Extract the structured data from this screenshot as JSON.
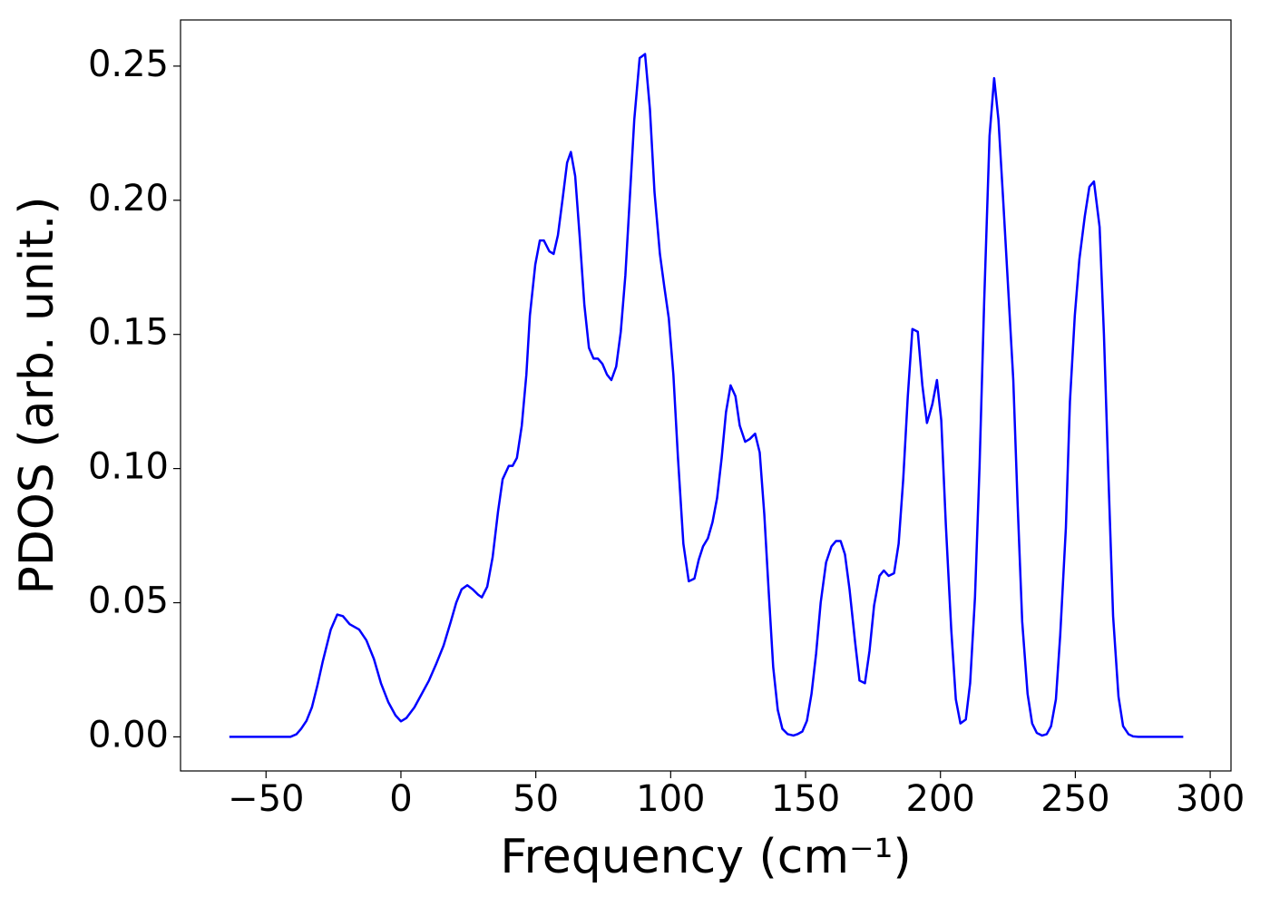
{
  "chart_data": {
    "type": "line",
    "xlabel": "Frequency (cm⁻¹)",
    "ylabel": "PDOS (arb. unit.)",
    "xlim": [
      -81.7,
      307.7
    ],
    "ylim": [
      -0.0127,
      0.2672
    ],
    "xticks": [
      {
        "value": -50,
        "label": "−50"
      },
      0,
      50,
      100,
      150,
      200,
      250,
      300
    ],
    "yticks": [
      {
        "value": 0,
        "label": "0.00"
      },
      {
        "value": 0.05,
        "label": "0.05"
      },
      {
        "value": 0.1,
        "label": "0.10"
      },
      {
        "value": 0.15,
        "label": "0.15"
      },
      {
        "value": 0.2,
        "label": "0.20"
      },
      {
        "value": 0.25,
        "label": "0.25"
      }
    ],
    "grid": false,
    "series": [
      {
        "color": "#0000ff",
        "x": [
          -63.6,
          -41,
          -38.7,
          -37,
          -35,
          -33,
          -31,
          -29,
          -26,
          -23.6,
          -21.5,
          -19,
          -15.5,
          -12.8,
          -10,
          -7.4,
          -4.7,
          -2,
          0,
          2,
          5,
          7.7,
          10.4,
          13,
          15.8,
          18.5,
          20.5,
          22.5,
          24.6,
          26.6,
          28.6,
          30,
          32,
          34,
          36,
          37.7,
          40,
          41.4,
          43,
          44.8,
          46.5,
          47.8,
          49.8,
          51.5,
          53,
          55,
          56.6,
          58.2,
          60,
          61.6,
          63,
          64.6,
          66.3,
          68,
          69.7,
          71.4,
          73,
          74.7,
          76.4,
          78,
          79.8,
          81.5,
          83.2,
          84.8,
          86.5,
          88.5,
          90.5,
          92.3,
          94,
          96,
          97.6,
          99.3,
          101,
          102.7,
          104.7,
          106.7,
          108.8,
          110.4,
          112,
          113.8,
          115.5,
          117.2,
          118.9,
          120.5,
          122.2,
          124,
          125.6,
          127.6,
          129.3,
          131.3,
          133,
          134.7,
          136.4,
          138,
          139.7,
          141.4,
          143.4,
          145.5,
          147,
          148.8,
          150.5,
          152.2,
          153.9,
          155.6,
          157.6,
          159.6,
          161.3,
          163,
          164.6,
          166.3,
          168.4,
          170,
          172,
          173.7,
          175.4,
          177.4,
          179,
          180.8,
          182.8,
          184.5,
          186.2,
          187.9,
          189.6,
          191.6,
          193.3,
          195,
          197,
          198.7,
          200.3,
          202,
          204,
          205.7,
          207.4,
          209.4,
          211,
          212.8,
          214.5,
          216.2,
          218.2,
          219.9,
          221.5,
          223.2,
          225,
          227,
          228.6,
          230.3,
          232.3,
          234,
          235.7,
          237.7,
          239.4,
          241,
          242.8,
          244.4,
          246.5,
          248,
          249.8,
          251.5,
          253.5,
          255.2,
          256.9,
          259,
          260.6,
          262.3,
          264,
          266,
          267.7,
          269.7,
          271.4,
          273.4,
          290
        ],
        "values": [
          0,
          0,
          0.001,
          0.003,
          0.006,
          0.011,
          0.019,
          0.028,
          0.04,
          0.0456,
          0.045,
          0.042,
          0.04,
          0.036,
          0.029,
          0.02,
          0.013,
          0.008,
          0.0058,
          0.007,
          0.011,
          0.016,
          0.021,
          0.027,
          0.034,
          0.043,
          0.05,
          0.055,
          0.0565,
          0.055,
          0.053,
          0.052,
          0.056,
          0.067,
          0.084,
          0.096,
          0.101,
          0.101,
          0.104,
          0.116,
          0.135,
          0.157,
          0.176,
          0.185,
          0.185,
          0.181,
          0.18,
          0.187,
          0.201,
          0.214,
          0.218,
          0.209,
          0.186,
          0.161,
          0.145,
          0.141,
          0.141,
          0.139,
          0.135,
          0.133,
          0.138,
          0.151,
          0.172,
          0.2,
          0.23,
          0.253,
          0.2545,
          0.234,
          0.203,
          0.18,
          0.168,
          0.156,
          0.135,
          0.104,
          0.072,
          0.058,
          0.059,
          0.066,
          0.071,
          0.074,
          0.08,
          0.089,
          0.104,
          0.121,
          0.131,
          0.127,
          0.116,
          0.11,
          0.111,
          0.113,
          0.106,
          0.083,
          0.053,
          0.026,
          0.01,
          0.003,
          0.001,
          0.0005,
          0.001,
          0.002,
          0.006,
          0.016,
          0.031,
          0.05,
          0.065,
          0.071,
          0.073,
          0.073,
          0.068,
          0.055,
          0.035,
          0.021,
          0.02,
          0.032,
          0.049,
          0.06,
          0.062,
          0.06,
          0.061,
          0.072,
          0.096,
          0.127,
          0.152,
          0.151,
          0.131,
          0.117,
          0.124,
          0.133,
          0.118,
          0.079,
          0.04,
          0.014,
          0.005,
          0.0065,
          0.02,
          0.052,
          0.101,
          0.162,
          0.224,
          0.2455,
          0.23,
          0.201,
          0.169,
          0.133,
          0.087,
          0.043,
          0.016,
          0.005,
          0.0015,
          0.0005,
          0.001,
          0.004,
          0.014,
          0.038,
          0.078,
          0.125,
          0.157,
          0.178,
          0.194,
          0.205,
          0.207,
          0.19,
          0.15,
          0.096,
          0.045,
          0.015,
          0.004,
          0.001,
          0.0002,
          0,
          0
        ]
      }
    ]
  }
}
